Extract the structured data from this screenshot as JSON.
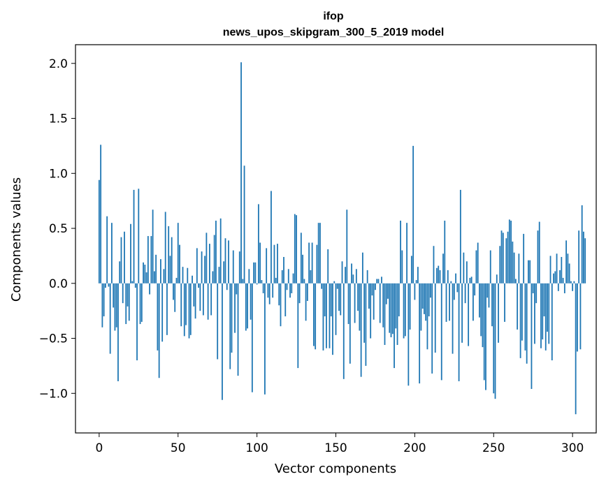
{
  "chart_data": {
    "type": "bar",
    "title": "ifop",
    "subtitle": "news_upos_skipgram_300_5_2019 model",
    "xlabel": "Vector components",
    "ylabel": "Components values",
    "xlim": [
      -15,
      315
    ],
    "ylim": [
      -1.36,
      2.17
    ],
    "x_ticks": [
      0,
      50,
      100,
      150,
      200,
      250,
      300
    ],
    "y_ticks": [
      -1.0,
      -0.5,
      0.0,
      0.5,
      1.0,
      1.5,
      2.0
    ],
    "x_tick_labels": [
      "0",
      "50",
      "100",
      "150",
      "200",
      "250",
      "300"
    ],
    "y_tick_labels": [
      "−1.0",
      "−0.5",
      "0.0",
      "0.5",
      "1.0",
      "1.5",
      "2.0"
    ],
    "bar_color": "#1f77b4",
    "grid": false,
    "values": [
      0.94,
      1.26,
      -0.4,
      -0.3,
      -0.04,
      0.61,
      -0.03,
      -0.64,
      0.55,
      -0.22,
      -0.43,
      -0.4,
      -0.89,
      0.2,
      0.42,
      -0.18,
      0.47,
      -0.37,
      -0.21,
      -0.34,
      0.54,
      0.02,
      0.85,
      -0.04,
      -0.7,
      0.86,
      -0.37,
      -0.35,
      0.19,
      0.17,
      0.1,
      0.43,
      -0.1,
      0.43,
      0.67,
      0.11,
      0.26,
      -0.61,
      -0.86,
      0.22,
      -0.53,
      0.13,
      0.65,
      -0.47,
      0.52,
      0.25,
      0.42,
      -0.15,
      -0.26,
      0.05,
      0.55,
      0.35,
      -0.39,
      0.15,
      -0.48,
      -0.38,
      0.14,
      -0.5,
      -0.47,
      0.07,
      -0.21,
      -0.32,
      0.32,
      -0.04,
      -0.25,
      0.29,
      -0.29,
      0.25,
      0.46,
      -0.33,
      0.36,
      -0.29,
      0.11,
      0.44,
      0.57,
      -0.69,
      0.15,
      0.59,
      -1.06,
      0.2,
      0.41,
      -0.06,
      0.39,
      -0.78,
      -0.63,
      0.3,
      -0.45,
      -0.1,
      -0.84,
      0.29,
      2.01,
      0.04,
      1.07,
      -0.43,
      -0.41,
      0.13,
      -0.33,
      -0.99,
      0.19,
      0.19,
      -0.01,
      0.72,
      0.37,
      0.03,
      -0.09,
      -1.01,
      0.32,
      -0.13,
      -0.19,
      0.84,
      -0.13,
      0.35,
      0.05,
      0.36,
      -0.2,
      -0.39,
      0.12,
      0.24,
      -0.3,
      -0.06,
      0.13,
      -0.13,
      -0.09,
      0.09,
      0.63,
      0.62,
      -0.77,
      -0.18,
      0.46,
      0.26,
      0.04,
      -0.34,
      -0.16,
      0.37,
      0.12,
      0.37,
      -0.57,
      -0.6,
      0.35,
      0.55,
      0.55,
      -0.05,
      -0.61,
      -0.3,
      -0.59,
      0.31,
      -0.59,
      -0.3,
      -0.65,
      0.02,
      -0.47,
      -0.05,
      -0.25,
      -0.29,
      0.2,
      -0.87,
      0.15,
      0.67,
      -0.37,
      -0.73,
      0.18,
      0.08,
      -0.36,
      0.13,
      -0.25,
      -0.43,
      -0.85,
      0.28,
      -0.54,
      -0.75,
      0.12,
      -0.23,
      -0.5,
      -0.11,
      -0.33,
      -0.06,
      0.04,
      0.04,
      -0.36,
      0.06,
      -0.4,
      -0.56,
      -0.19,
      -0.14,
      -0.45,
      -0.49,
      -0.46,
      -0.77,
      -0.41,
      -0.56,
      -0.3,
      0.57,
      0.3,
      -0.5,
      -0.48,
      0.55,
      -0.93,
      -0.42,
      0.25,
      1.25,
      -0.15,
      0.03,
      0.15,
      -0.91,
      -0.43,
      -0.23,
      -0.28,
      -0.34,
      -0.6,
      -0.3,
      -0.13,
      -0.82,
      0.34,
      -0.63,
      0.14,
      0.16,
      0.12,
      -0.88,
      0.27,
      0.57,
      -0.35,
      0.12,
      -0.34,
      0.02,
      -0.64,
      -0.15,
      0.09,
      -0.08,
      -0.89,
      0.85,
      -0.54,
      0.28,
      -0.18,
      0.2,
      -0.57,
      0.05,
      0.06,
      -0.34,
      -0.11,
      0.3,
      0.37,
      -0.31,
      -0.48,
      -0.58,
      -0.88,
      -0.97,
      -0.13,
      -0.22,
      0.3,
      -0.39,
      -1.0,
      -1.05,
      0.08,
      -0.54,
      0.34,
      0.48,
      0.46,
      -0.35,
      0.41,
      0.47,
      0.58,
      0.57,
      0.38,
      0.28,
      0.04,
      -0.42,
      0.27,
      -0.68,
      -0.52,
      0.45,
      -0.61,
      -0.73,
      0.21,
      0.21,
      -0.96,
      -0.09,
      -0.55,
      -0.18,
      0.48,
      0.56,
      -0.59,
      -0.51,
      -0.3,
      -0.61,
      -0.44,
      -0.55,
      0.25,
      -0.7,
      0.09,
      0.11,
      0.27,
      -0.07,
      0.12,
      0.24,
      0.05,
      -0.09,
      0.39,
      0.27,
      0.18,
      0.02,
      -0.07,
      0.02,
      -1.19,
      -0.62,
      0.48,
      -0.6,
      0.71,
      0.47,
      0.41
    ]
  }
}
